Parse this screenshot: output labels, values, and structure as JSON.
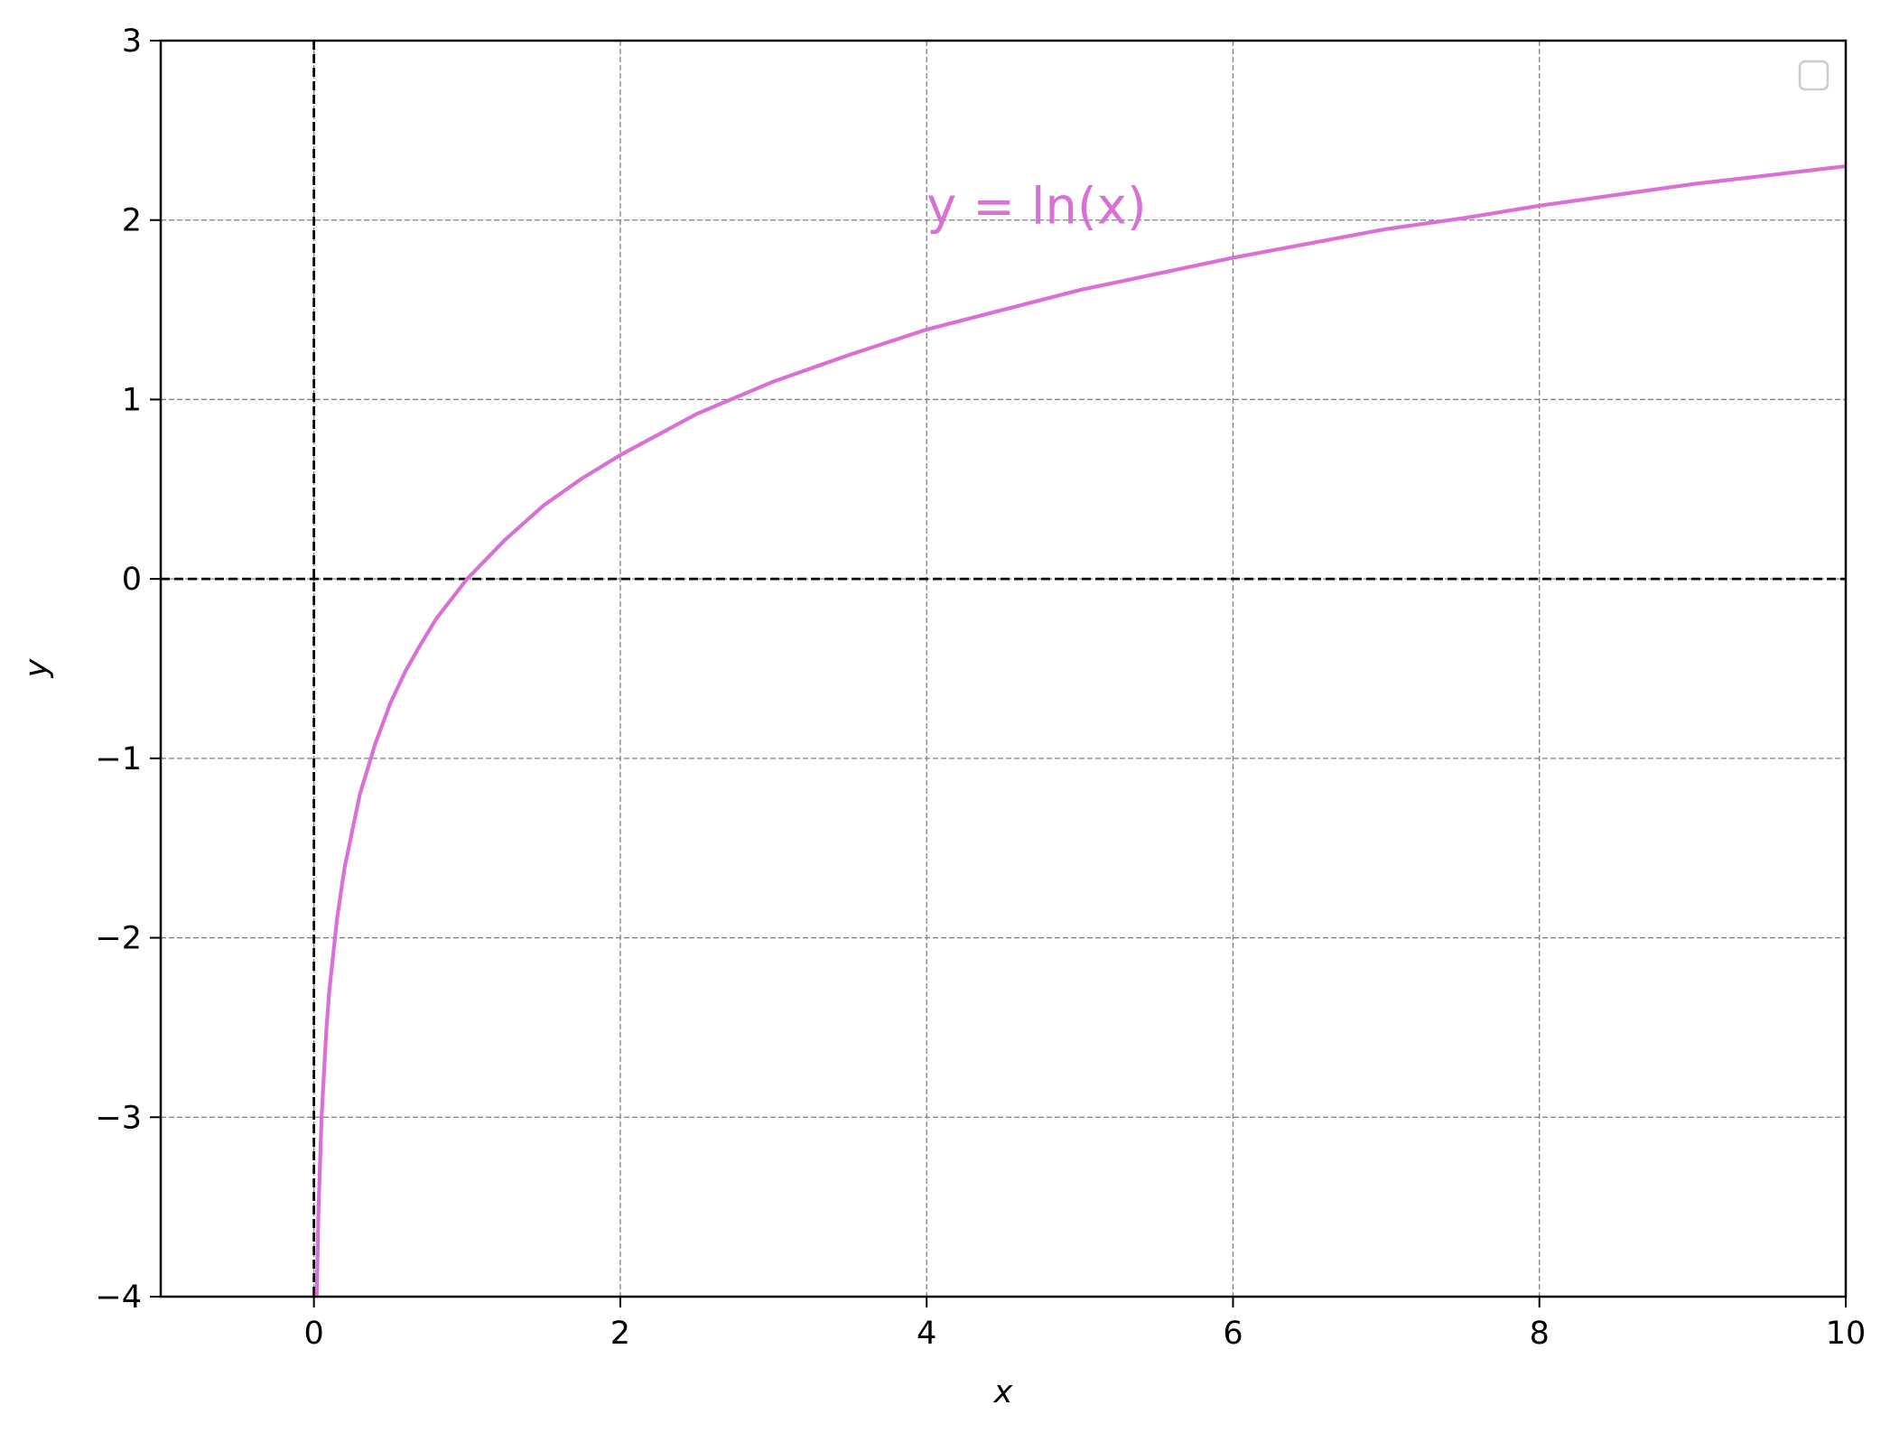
{
  "chart_data": {
    "type": "line",
    "title": "",
    "xlabel": "x",
    "ylabel": "y",
    "xlim": [
      -1,
      10
    ],
    "ylim": [
      -4,
      3
    ],
    "x_ticks": [
      0,
      2,
      4,
      6,
      8,
      10
    ],
    "y_ticks": [
      -4,
      -3,
      -2,
      -1,
      0,
      1,
      2,
      3
    ],
    "x_tick_labels": [
      "0",
      "2",
      "4",
      "6",
      "8",
      "10"
    ],
    "y_tick_labels": [
      "−4",
      "−3",
      "−2",
      "−1",
      "0",
      "1",
      "2",
      "3"
    ],
    "grid": true,
    "reference_lines": {
      "x0": true,
      "y0": true
    },
    "legend": {
      "placement": "top-right",
      "entries": []
    },
    "series": [
      {
        "function": "ln(x)",
        "color": "#DA70D6",
        "x": [
          0.018,
          0.03,
          0.05,
          0.08,
          0.1,
          0.15,
          0.2,
          0.3,
          0.4,
          0.5,
          0.6,
          0.7,
          0.8,
          0.9,
          1.0,
          1.25,
          1.5,
          1.75,
          2.0,
          2.5,
          3.0,
          3.5,
          4.0,
          4.5,
          5.0,
          5.5,
          6.0,
          6.5,
          7.0,
          7.5,
          8.0,
          8.5,
          9.0,
          9.5,
          10.0
        ],
        "y": [
          -4.0,
          -3.51,
          -3.0,
          -2.53,
          -2.3,
          -1.9,
          -1.61,
          -1.2,
          -0.92,
          -0.69,
          -0.51,
          -0.36,
          -0.22,
          -0.11,
          0.0,
          0.22,
          0.41,
          0.56,
          0.69,
          0.92,
          1.1,
          1.25,
          1.39,
          1.5,
          1.61,
          1.7,
          1.79,
          1.87,
          1.95,
          2.01,
          2.08,
          2.14,
          2.2,
          2.25,
          2.3
        ]
      }
    ],
    "annotations": [
      {
        "text": "y = ln(x)",
        "x": 4.0,
        "y": 2.0,
        "color": "#DA70D6"
      }
    ]
  }
}
